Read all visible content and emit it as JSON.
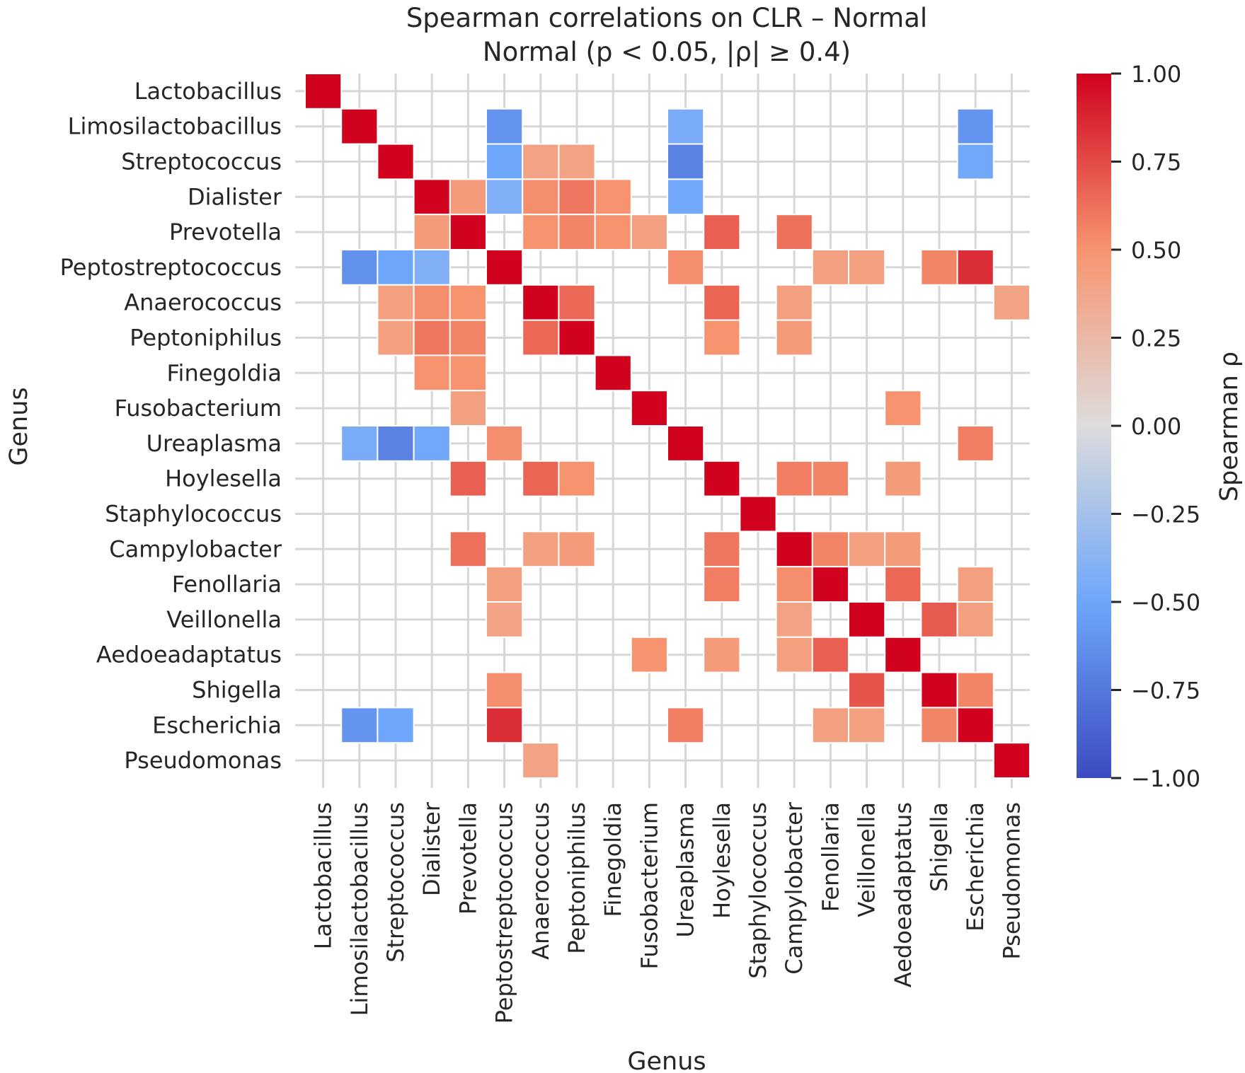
{
  "chart_data": {
    "type": "heatmap",
    "title": "Spearman correlations on CLR – Normal",
    "subtitle": "Normal (p < 0.05, |ρ| ≥ 0.4)",
    "xlabel": "Genus",
    "ylabel": "Genus",
    "colorbar_label": "Spearman ρ",
    "colorbar_ticks": [
      "1.00",
      "0.75",
      "0.50",
      "0.25",
      "0.00",
      "−0.25",
      "−0.50",
      "−0.75",
      "−1.00"
    ],
    "colorbar_tick_values": [
      1,
      0.75,
      0.5,
      0.25,
      0,
      -0.25,
      -0.5,
      -0.75,
      -1
    ],
    "vmin": -1,
    "vmax": 1,
    "colormap": "coolwarm",
    "colormap_stops": [
      {
        "v": -1,
        "color": "#3b4cc0"
      },
      {
        "v": -0.5,
        "color": "#6ea6fb"
      },
      {
        "v": 0,
        "color": "#dddcdc"
      },
      {
        "v": 0.5,
        "color": "#f7946f"
      },
      {
        "v": 1,
        "color": "#d0021e"
      }
    ],
    "grid": true,
    "labels": [
      "Lactobacillus",
      "Limosilactobacillus",
      "Streptococcus",
      "Dialister",
      "Prevotella",
      "Peptostreptococcus",
      "Anaerococcus",
      "Peptoniphilus",
      "Finegoldia",
      "Fusobacterium",
      "Ureaplasma",
      "Hoylesella",
      "Staphylococcus",
      "Campylobacter",
      "Fenollaria",
      "Veillonella",
      "Aedoeadaptatus",
      "Shigella",
      "Escherichia",
      "Pseudomonas"
    ],
    "cells": [
      [
        0,
        0,
        1
      ],
      [
        1,
        1,
        1
      ],
      [
        1,
        5,
        -0.6
      ],
      [
        1,
        10,
        -0.45
      ],
      [
        1,
        18,
        -0.6
      ],
      [
        2,
        2,
        1
      ],
      [
        2,
        5,
        -0.5
      ],
      [
        2,
        6,
        0.4
      ],
      [
        2,
        7,
        0.4
      ],
      [
        2,
        10,
        -0.7
      ],
      [
        2,
        18,
        -0.48
      ],
      [
        3,
        3,
        1
      ],
      [
        3,
        4,
        0.45
      ],
      [
        3,
        5,
        -0.42
      ],
      [
        3,
        6,
        0.52
      ],
      [
        3,
        7,
        0.6
      ],
      [
        3,
        8,
        0.5
      ],
      [
        3,
        10,
        -0.48
      ],
      [
        4,
        3,
        0.45
      ],
      [
        4,
        4,
        1
      ],
      [
        4,
        6,
        0.5
      ],
      [
        4,
        7,
        0.55
      ],
      [
        4,
        8,
        0.5
      ],
      [
        4,
        9,
        0.42
      ],
      [
        4,
        11,
        0.68
      ],
      [
        4,
        13,
        0.62
      ],
      [
        5,
        1,
        -0.62
      ],
      [
        5,
        2,
        -0.5
      ],
      [
        5,
        3,
        -0.42
      ],
      [
        5,
        5,
        1
      ],
      [
        5,
        10,
        0.52
      ],
      [
        5,
        14,
        0.42
      ],
      [
        5,
        15,
        0.42
      ],
      [
        5,
        17,
        0.55
      ],
      [
        5,
        18,
        0.85
      ],
      [
        6,
        2,
        0.42
      ],
      [
        6,
        3,
        0.52
      ],
      [
        6,
        4,
        0.5
      ],
      [
        6,
        6,
        1
      ],
      [
        6,
        7,
        0.65
      ],
      [
        6,
        11,
        0.66
      ],
      [
        6,
        13,
        0.42
      ],
      [
        6,
        19,
        0.4
      ],
      [
        7,
        2,
        0.42
      ],
      [
        7,
        3,
        0.6
      ],
      [
        7,
        4,
        0.55
      ],
      [
        7,
        6,
        0.65
      ],
      [
        7,
        7,
        1
      ],
      [
        7,
        11,
        0.5
      ],
      [
        7,
        13,
        0.45
      ],
      [
        8,
        3,
        0.5
      ],
      [
        8,
        4,
        0.5
      ],
      [
        8,
        8,
        1
      ],
      [
        9,
        4,
        0.42
      ],
      [
        9,
        9,
        1
      ],
      [
        9,
        16,
        0.5
      ],
      [
        10,
        1,
        -0.45
      ],
      [
        10,
        2,
        -0.7
      ],
      [
        10,
        3,
        -0.48
      ],
      [
        10,
        5,
        0.52
      ],
      [
        10,
        10,
        1
      ],
      [
        10,
        18,
        0.58
      ],
      [
        11,
        4,
        0.68
      ],
      [
        11,
        6,
        0.66
      ],
      [
        11,
        7,
        0.5
      ],
      [
        11,
        11,
        1
      ],
      [
        11,
        13,
        0.58
      ],
      [
        11,
        14,
        0.55
      ],
      [
        11,
        16,
        0.45
      ],
      [
        12,
        12,
        1
      ],
      [
        13,
        4,
        0.62
      ],
      [
        13,
        6,
        0.42
      ],
      [
        13,
        7,
        0.45
      ],
      [
        13,
        11,
        0.6
      ],
      [
        13,
        13,
        1
      ],
      [
        13,
        14,
        0.55
      ],
      [
        13,
        15,
        0.42
      ],
      [
        13,
        16,
        0.45
      ],
      [
        14,
        5,
        0.42
      ],
      [
        14,
        11,
        0.58
      ],
      [
        14,
        13,
        0.52
      ],
      [
        14,
        14,
        1
      ],
      [
        14,
        16,
        0.65
      ],
      [
        14,
        18,
        0.42
      ],
      [
        15,
        5,
        0.4
      ],
      [
        15,
        13,
        0.4
      ],
      [
        15,
        15,
        1
      ],
      [
        15,
        17,
        0.7
      ],
      [
        15,
        18,
        0.42
      ],
      [
        16,
        9,
        0.5
      ],
      [
        16,
        11,
        0.45
      ],
      [
        16,
        13,
        0.42
      ],
      [
        16,
        14,
        0.68
      ],
      [
        16,
        16,
        1
      ],
      [
        17,
        5,
        0.52
      ],
      [
        17,
        15,
        0.72
      ],
      [
        17,
        17,
        1
      ],
      [
        17,
        18,
        0.55
      ],
      [
        18,
        1,
        -0.6
      ],
      [
        18,
        2,
        -0.5
      ],
      [
        18,
        5,
        0.85
      ],
      [
        18,
        10,
        0.58
      ],
      [
        18,
        14,
        0.42
      ],
      [
        18,
        15,
        0.42
      ],
      [
        18,
        17,
        0.55
      ],
      [
        18,
        18,
        1
      ],
      [
        19,
        6,
        0.4
      ],
      [
        19,
        19,
        1
      ]
    ]
  }
}
